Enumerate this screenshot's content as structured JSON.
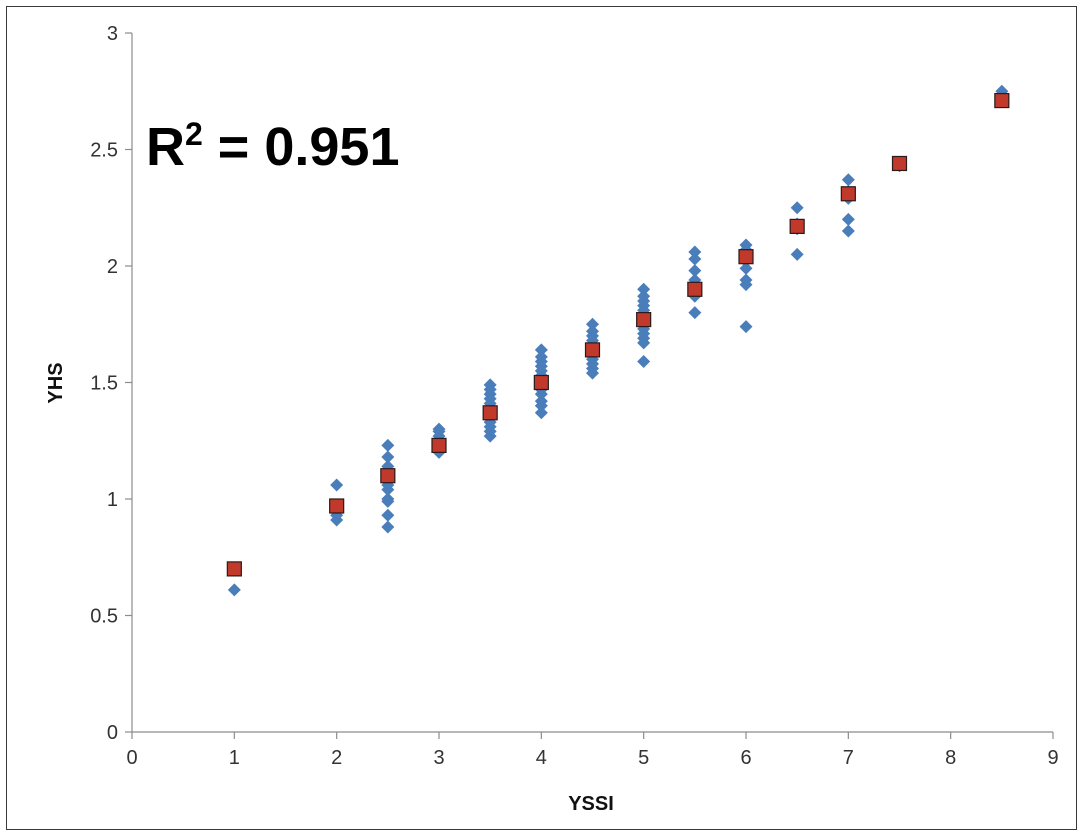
{
  "chart_data": {
    "type": "scatter",
    "xlabel": "YSSI",
    "ylabel": "YHS",
    "xlim": [
      0,
      9
    ],
    "ylim": [
      0,
      3
    ],
    "x_ticks": [
      "0",
      "1",
      "2",
      "3",
      "4",
      "5",
      "6",
      "7",
      "8",
      "9"
    ],
    "y_ticks": [
      "0",
      "0.5",
      "1",
      "1.5",
      "2",
      "2.5",
      "3"
    ],
    "grid": false,
    "legend": "none",
    "annotation": {
      "base": "R",
      "superscript": "2",
      "rest": " = 0.951"
    },
    "colors": {
      "observed": "#4a7ebb",
      "fitted": "#c0392b",
      "axis": "#8c8c8c"
    },
    "series": [
      {
        "marker": "diamond",
        "points": [
          [
            1,
            0.61
          ],
          [
            2,
            0.91
          ],
          [
            2,
            0.93
          ],
          [
            2,
            1.06
          ],
          [
            2.5,
            0.88
          ],
          [
            2.5,
            0.93
          ],
          [
            2.5,
            0.99
          ],
          [
            2.5,
            1.0
          ],
          [
            2.5,
            1.04
          ],
          [
            2.5,
            1.06
          ],
          [
            2.5,
            1.08
          ],
          [
            2.5,
            1.1
          ],
          [
            2.5,
            1.12
          ],
          [
            2.5,
            1.14
          ],
          [
            2.5,
            1.18
          ],
          [
            2.5,
            1.23
          ],
          [
            3,
            1.2
          ],
          [
            3,
            1.22
          ],
          [
            3,
            1.23
          ],
          [
            3,
            1.25
          ],
          [
            3,
            1.27
          ],
          [
            3,
            1.29
          ],
          [
            3,
            1.3
          ],
          [
            3.5,
            1.27
          ],
          [
            3.5,
            1.29
          ],
          [
            3.5,
            1.31
          ],
          [
            3.5,
            1.33
          ],
          [
            3.5,
            1.35
          ],
          [
            3.5,
            1.37
          ],
          [
            3.5,
            1.39
          ],
          [
            3.5,
            1.41
          ],
          [
            3.5,
            1.43
          ],
          [
            3.5,
            1.45
          ],
          [
            3.5,
            1.47
          ],
          [
            3.5,
            1.49
          ],
          [
            4,
            1.37
          ],
          [
            4,
            1.4
          ],
          [
            4,
            1.42
          ],
          [
            4,
            1.45
          ],
          [
            4,
            1.47
          ],
          [
            4,
            1.49
          ],
          [
            4,
            1.51
          ],
          [
            4,
            1.53
          ],
          [
            4,
            1.55
          ],
          [
            4,
            1.57
          ],
          [
            4,
            1.59
          ],
          [
            4,
            1.61
          ],
          [
            4,
            1.64
          ],
          [
            4.5,
            1.54
          ],
          [
            4.5,
            1.56
          ],
          [
            4.5,
            1.58
          ],
          [
            4.5,
            1.6
          ],
          [
            4.5,
            1.62
          ],
          [
            4.5,
            1.64
          ],
          [
            4.5,
            1.66
          ],
          [
            4.5,
            1.68
          ],
          [
            4.5,
            1.7
          ],
          [
            4.5,
            1.72
          ],
          [
            4.5,
            1.75
          ],
          [
            5,
            1.59
          ],
          [
            5,
            1.67
          ],
          [
            5,
            1.69
          ],
          [
            5,
            1.71
          ],
          [
            5,
            1.73
          ],
          [
            5,
            1.75
          ],
          [
            5,
            1.77
          ],
          [
            5,
            1.79
          ],
          [
            5,
            1.81
          ],
          [
            5,
            1.83
          ],
          [
            5,
            1.85
          ],
          [
            5,
            1.87
          ],
          [
            5,
            1.9
          ],
          [
            5.5,
            1.8
          ],
          [
            5.5,
            1.87
          ],
          [
            5.5,
            1.89
          ],
          [
            5.5,
            1.91
          ],
          [
            5.5,
            1.94
          ],
          [
            5.5,
            1.98
          ],
          [
            5.5,
            2.03
          ],
          [
            5.5,
            2.06
          ],
          [
            6,
            1.74
          ],
          [
            6,
            1.92
          ],
          [
            6,
            1.94
          ],
          [
            6,
            1.99
          ],
          [
            6,
            2.02
          ],
          [
            6,
            2.05
          ],
          [
            6,
            2.07
          ],
          [
            6,
            2.09
          ],
          [
            6.5,
            2.05
          ],
          [
            6.5,
            2.16
          ],
          [
            6.5,
            2.18
          ],
          [
            6.5,
            2.25
          ],
          [
            7,
            2.15
          ],
          [
            7,
            2.2
          ],
          [
            7,
            2.29
          ],
          [
            7,
            2.32
          ],
          [
            7,
            2.37
          ],
          [
            7.5,
            2.43
          ],
          [
            8.5,
            2.75
          ]
        ]
      },
      {
        "marker": "square",
        "points": [
          [
            1,
            0.7
          ],
          [
            2,
            0.97
          ],
          [
            2.5,
            1.1
          ],
          [
            3,
            1.23
          ],
          [
            3.5,
            1.37
          ],
          [
            4,
            1.5
          ],
          [
            4.5,
            1.64
          ],
          [
            5,
            1.77
          ],
          [
            5.5,
            1.9
          ],
          [
            6,
            2.04
          ],
          [
            6.5,
            2.17
          ],
          [
            7,
            2.31
          ],
          [
            7.5,
            2.44
          ],
          [
            8.5,
            2.71
          ]
        ]
      }
    ]
  }
}
